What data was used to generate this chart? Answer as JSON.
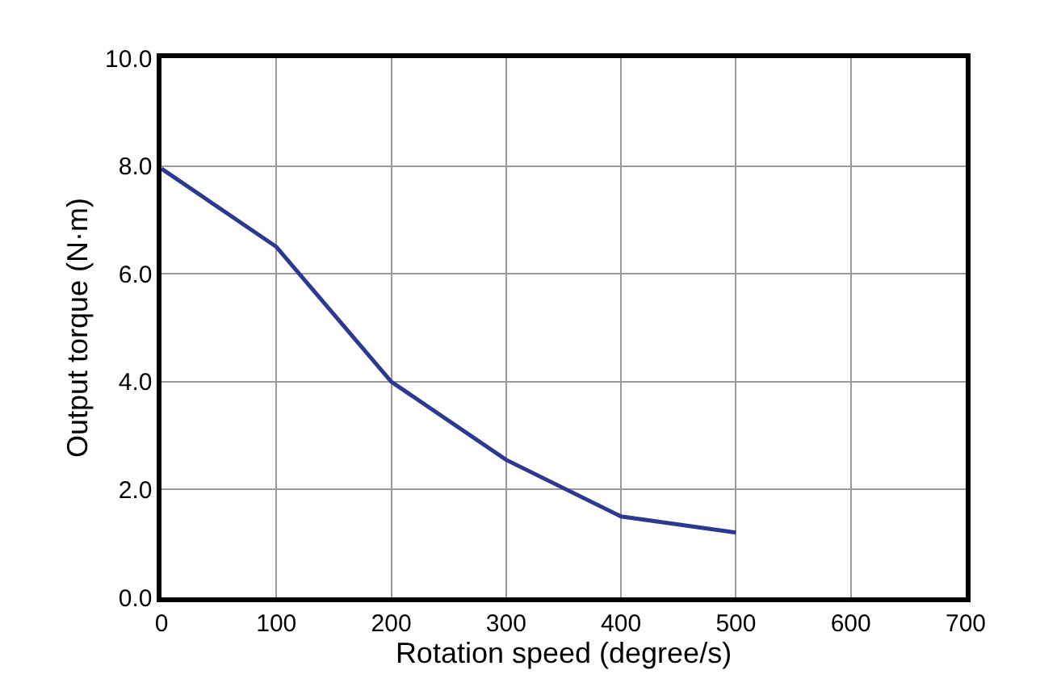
{
  "chart_data": {
    "type": "line",
    "xlabel": "Rotation speed (degree/s)",
    "ylabel": "Output torque (N·m)",
    "x": [
      0,
      100,
      200,
      300,
      400,
      500
    ],
    "series": [
      {
        "color": "#2b3990",
        "values": [
          7.95,
          6.5,
          4.0,
          2.55,
          1.5,
          1.2
        ]
      }
    ],
    "xlim": [
      0,
      700
    ],
    "xticks": [
      0,
      100,
      200,
      300,
      400,
      500,
      600,
      700
    ],
    "ylim": [
      0,
      10
    ],
    "yticks": [
      {
        "value": 0,
        "label": "0.0"
      },
      {
        "value": 2,
        "label": "2.0"
      },
      {
        "value": 4,
        "label": "4.0"
      },
      {
        "value": 6,
        "label": "6.0"
      },
      {
        "value": 8,
        "label": "8.0"
      },
      {
        "value": 10,
        "label": "10.0"
      }
    ],
    "grid": true,
    "marker": "none",
    "line_style": "solid",
    "legend": false
  }
}
